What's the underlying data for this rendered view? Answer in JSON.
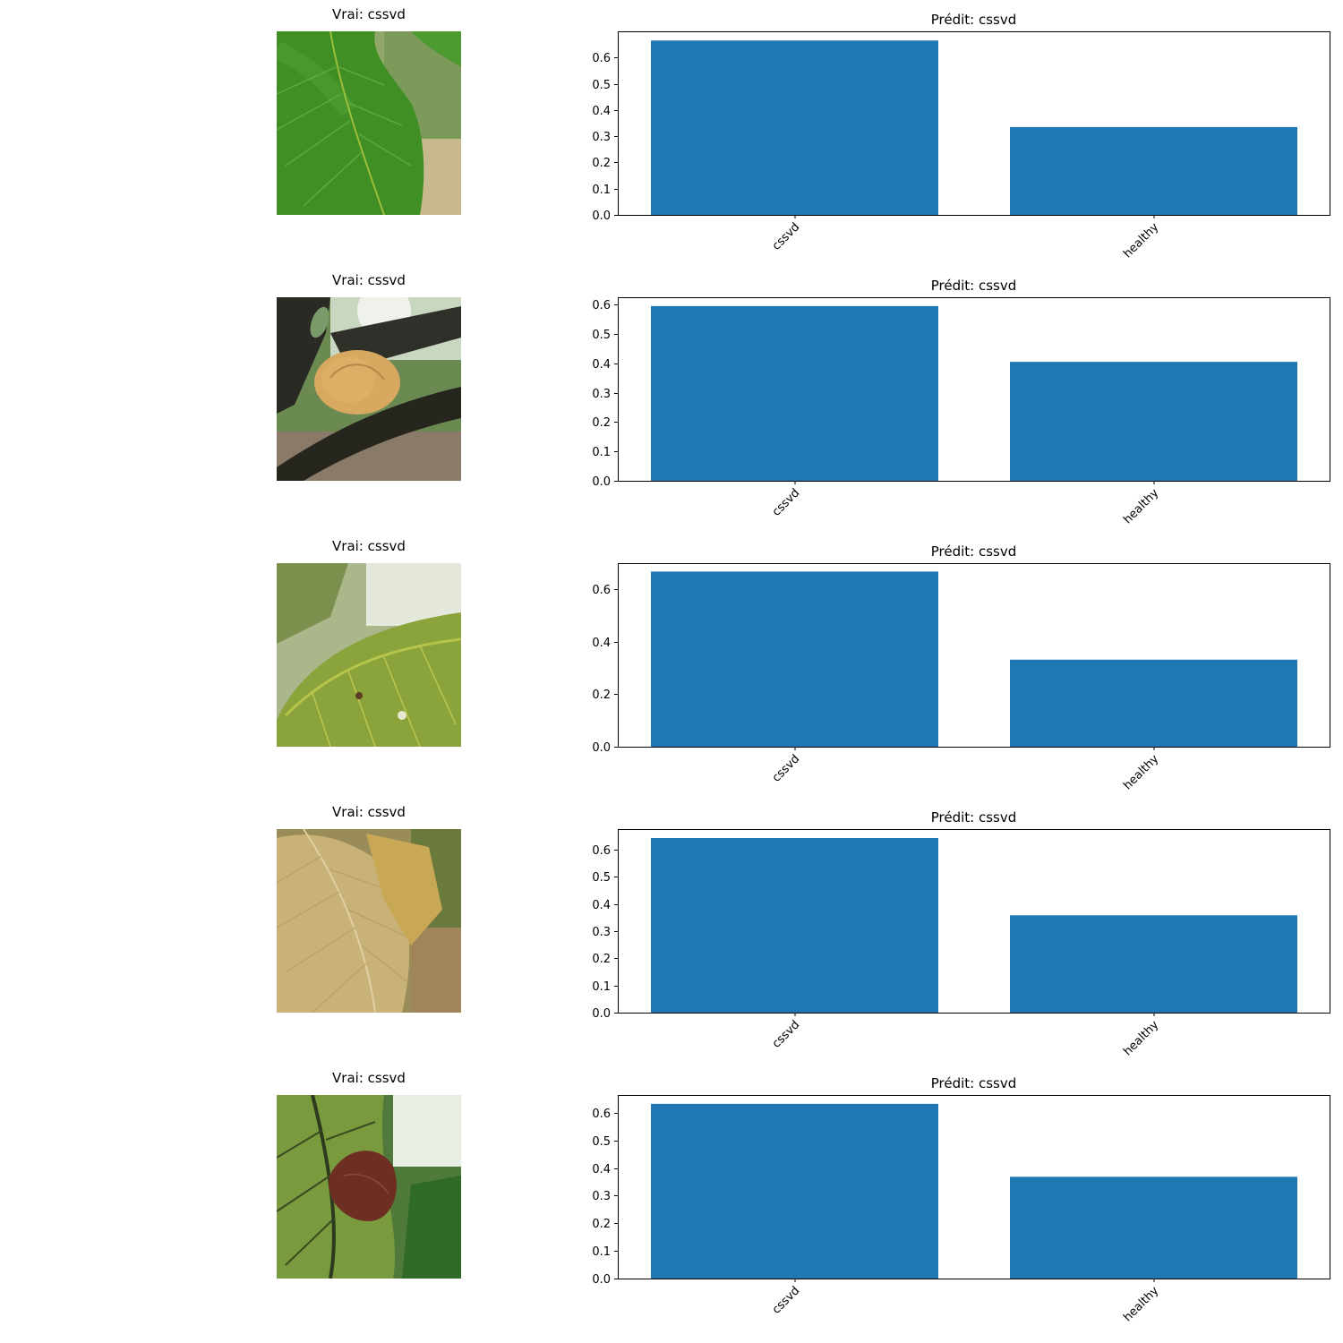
{
  "chart_data": [
    {
      "type": "bar",
      "image_title": "Vrai: cssvd",
      "title": "Prédit: cssvd",
      "categories": [
        "cssvd",
        "healthy"
      ],
      "values": [
        0.665,
        0.335
      ],
      "ylim": [
        0,
        0.7
      ],
      "yticks": [
        0.0,
        0.1,
        0.2,
        0.3,
        0.4,
        0.5,
        0.6
      ],
      "ytick_labels": [
        "0.0",
        "0.1",
        "0.2",
        "0.3",
        "0.4",
        "0.5",
        "0.6"
      ],
      "grid": false,
      "color": "#1f77b4",
      "photo": "green-cocoa-leaf"
    },
    {
      "type": "bar",
      "image_title": "Vrai: cssvd",
      "title": "Prédit: cssvd",
      "categories": [
        "cssvd",
        "healthy"
      ],
      "values": [
        0.595,
        0.405
      ],
      "ylim": [
        0,
        0.625
      ],
      "yticks": [
        0.0,
        0.1,
        0.2,
        0.3,
        0.4,
        0.5,
        0.6
      ],
      "ytick_labels": [
        "0.0",
        "0.1",
        "0.2",
        "0.3",
        "0.4",
        "0.5",
        "0.6"
      ],
      "grid": false,
      "color": "#1f77b4",
      "photo": "cocoa-pod-on-branch"
    },
    {
      "type": "bar",
      "image_title": "Vrai: cssvd",
      "title": "Prédit: cssvd",
      "categories": [
        "cssvd",
        "healthy"
      ],
      "values": [
        0.668,
        0.332
      ],
      "ylim": [
        0,
        0.7
      ],
      "yticks": [
        0.0,
        0.2,
        0.4,
        0.6
      ],
      "ytick_labels": [
        "0.0",
        "0.2",
        "0.4",
        "0.6"
      ],
      "grid": false,
      "color": "#1f77b4",
      "photo": "yellow-spotted-leaf"
    },
    {
      "type": "bar",
      "image_title": "Vrai: cssvd",
      "title": "Prédit: cssvd",
      "categories": [
        "cssvd",
        "healthy"
      ],
      "values": [
        0.642,
        0.358
      ],
      "ylim": [
        0,
        0.675
      ],
      "yticks": [
        0.0,
        0.1,
        0.2,
        0.3,
        0.4,
        0.5,
        0.6
      ],
      "ytick_labels": [
        "0.0",
        "0.1",
        "0.2",
        "0.3",
        "0.4",
        "0.5",
        "0.6"
      ],
      "grid": false,
      "color": "#1f77b4",
      "photo": "yellowed-leaf"
    },
    {
      "type": "bar",
      "image_title": "Vrai: cssvd",
      "title": "Prédit: cssvd",
      "categories": [
        "cssvd",
        "healthy"
      ],
      "values": [
        0.632,
        0.368
      ],
      "ylim": [
        0,
        0.664
      ],
      "yticks": [
        0.0,
        0.1,
        0.2,
        0.3,
        0.4,
        0.5,
        0.6
      ],
      "ytick_labels": [
        "0.0",
        "0.1",
        "0.2",
        "0.3",
        "0.4",
        "0.5",
        "0.6"
      ],
      "grid": false,
      "color": "#1f77b4",
      "photo": "leaf-with-brown-dead-leaf"
    }
  ]
}
